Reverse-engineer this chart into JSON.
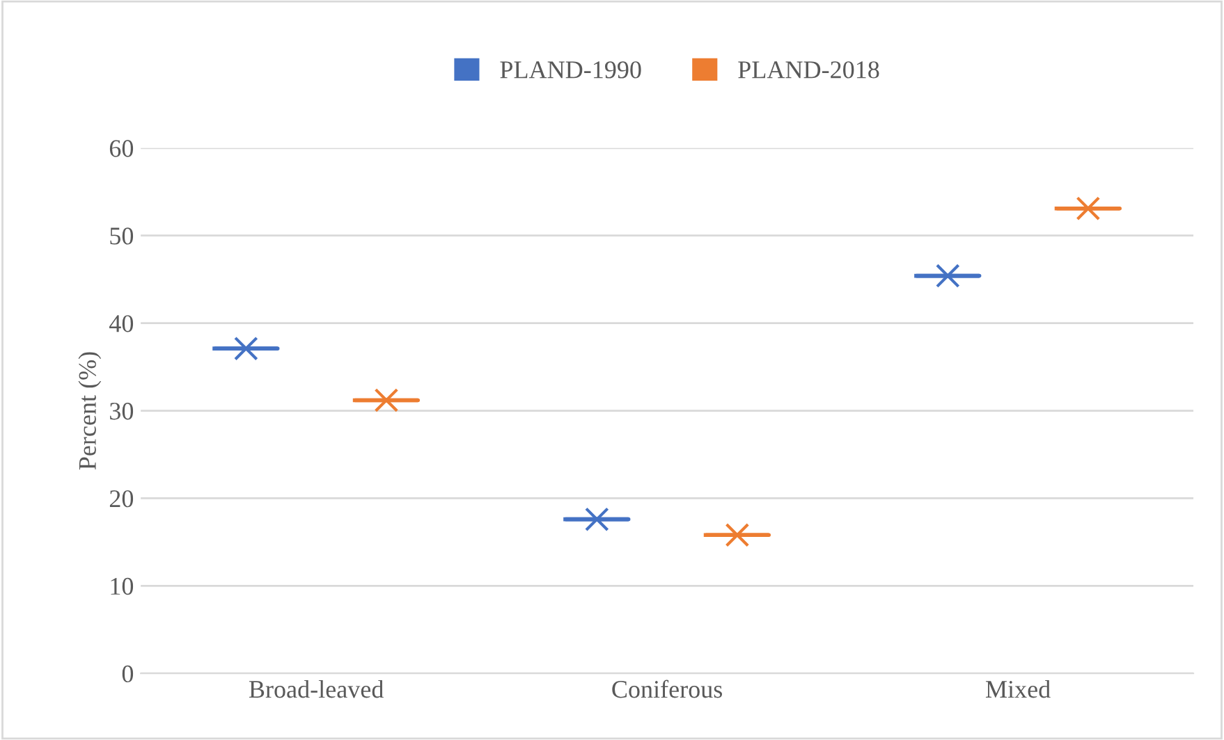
{
  "chart_data": {
    "type": "box",
    "ylabel": "Percent (%)",
    "categories": [
      "Broad-leaved",
      "Coniferous",
      "Mixed"
    ],
    "series": [
      {
        "name": "PLAND-1990",
        "color": "#4472c4",
        "boxes": [
          {
            "low": 37.1,
            "q1": 37.1,
            "median": 37.1,
            "q3": 37.1,
            "high": 37.1,
            "mean": 37.1
          },
          {
            "low": 17.6,
            "q1": 17.6,
            "median": 17.6,
            "q3": 17.6,
            "high": 17.6,
            "mean": 17.6
          },
          {
            "low": 45.4,
            "q1": 45.4,
            "median": 45.4,
            "q3": 45.4,
            "high": 45.4,
            "mean": 45.4
          }
        ]
      },
      {
        "name": "PLAND-2018",
        "color": "#ed7d31",
        "boxes": [
          {
            "low": 31.2,
            "q1": 31.2,
            "median": 31.2,
            "q3": 31.2,
            "high": 31.2,
            "mean": 31.2
          },
          {
            "low": 15.8,
            "q1": 15.8,
            "median": 15.8,
            "q3": 15.8,
            "high": 15.8,
            "mean": 15.8
          },
          {
            "low": 53.1,
            "q1": 53.1,
            "median": 53.1,
            "q3": 53.1,
            "high": 53.1,
            "mean": 53.1
          }
        ]
      }
    ],
    "ylim": [
      0,
      60
    ],
    "yticks": [
      0,
      10,
      20,
      30,
      40,
      50,
      60
    ],
    "grid": "y",
    "legend": "top",
    "marker": "cross"
  }
}
